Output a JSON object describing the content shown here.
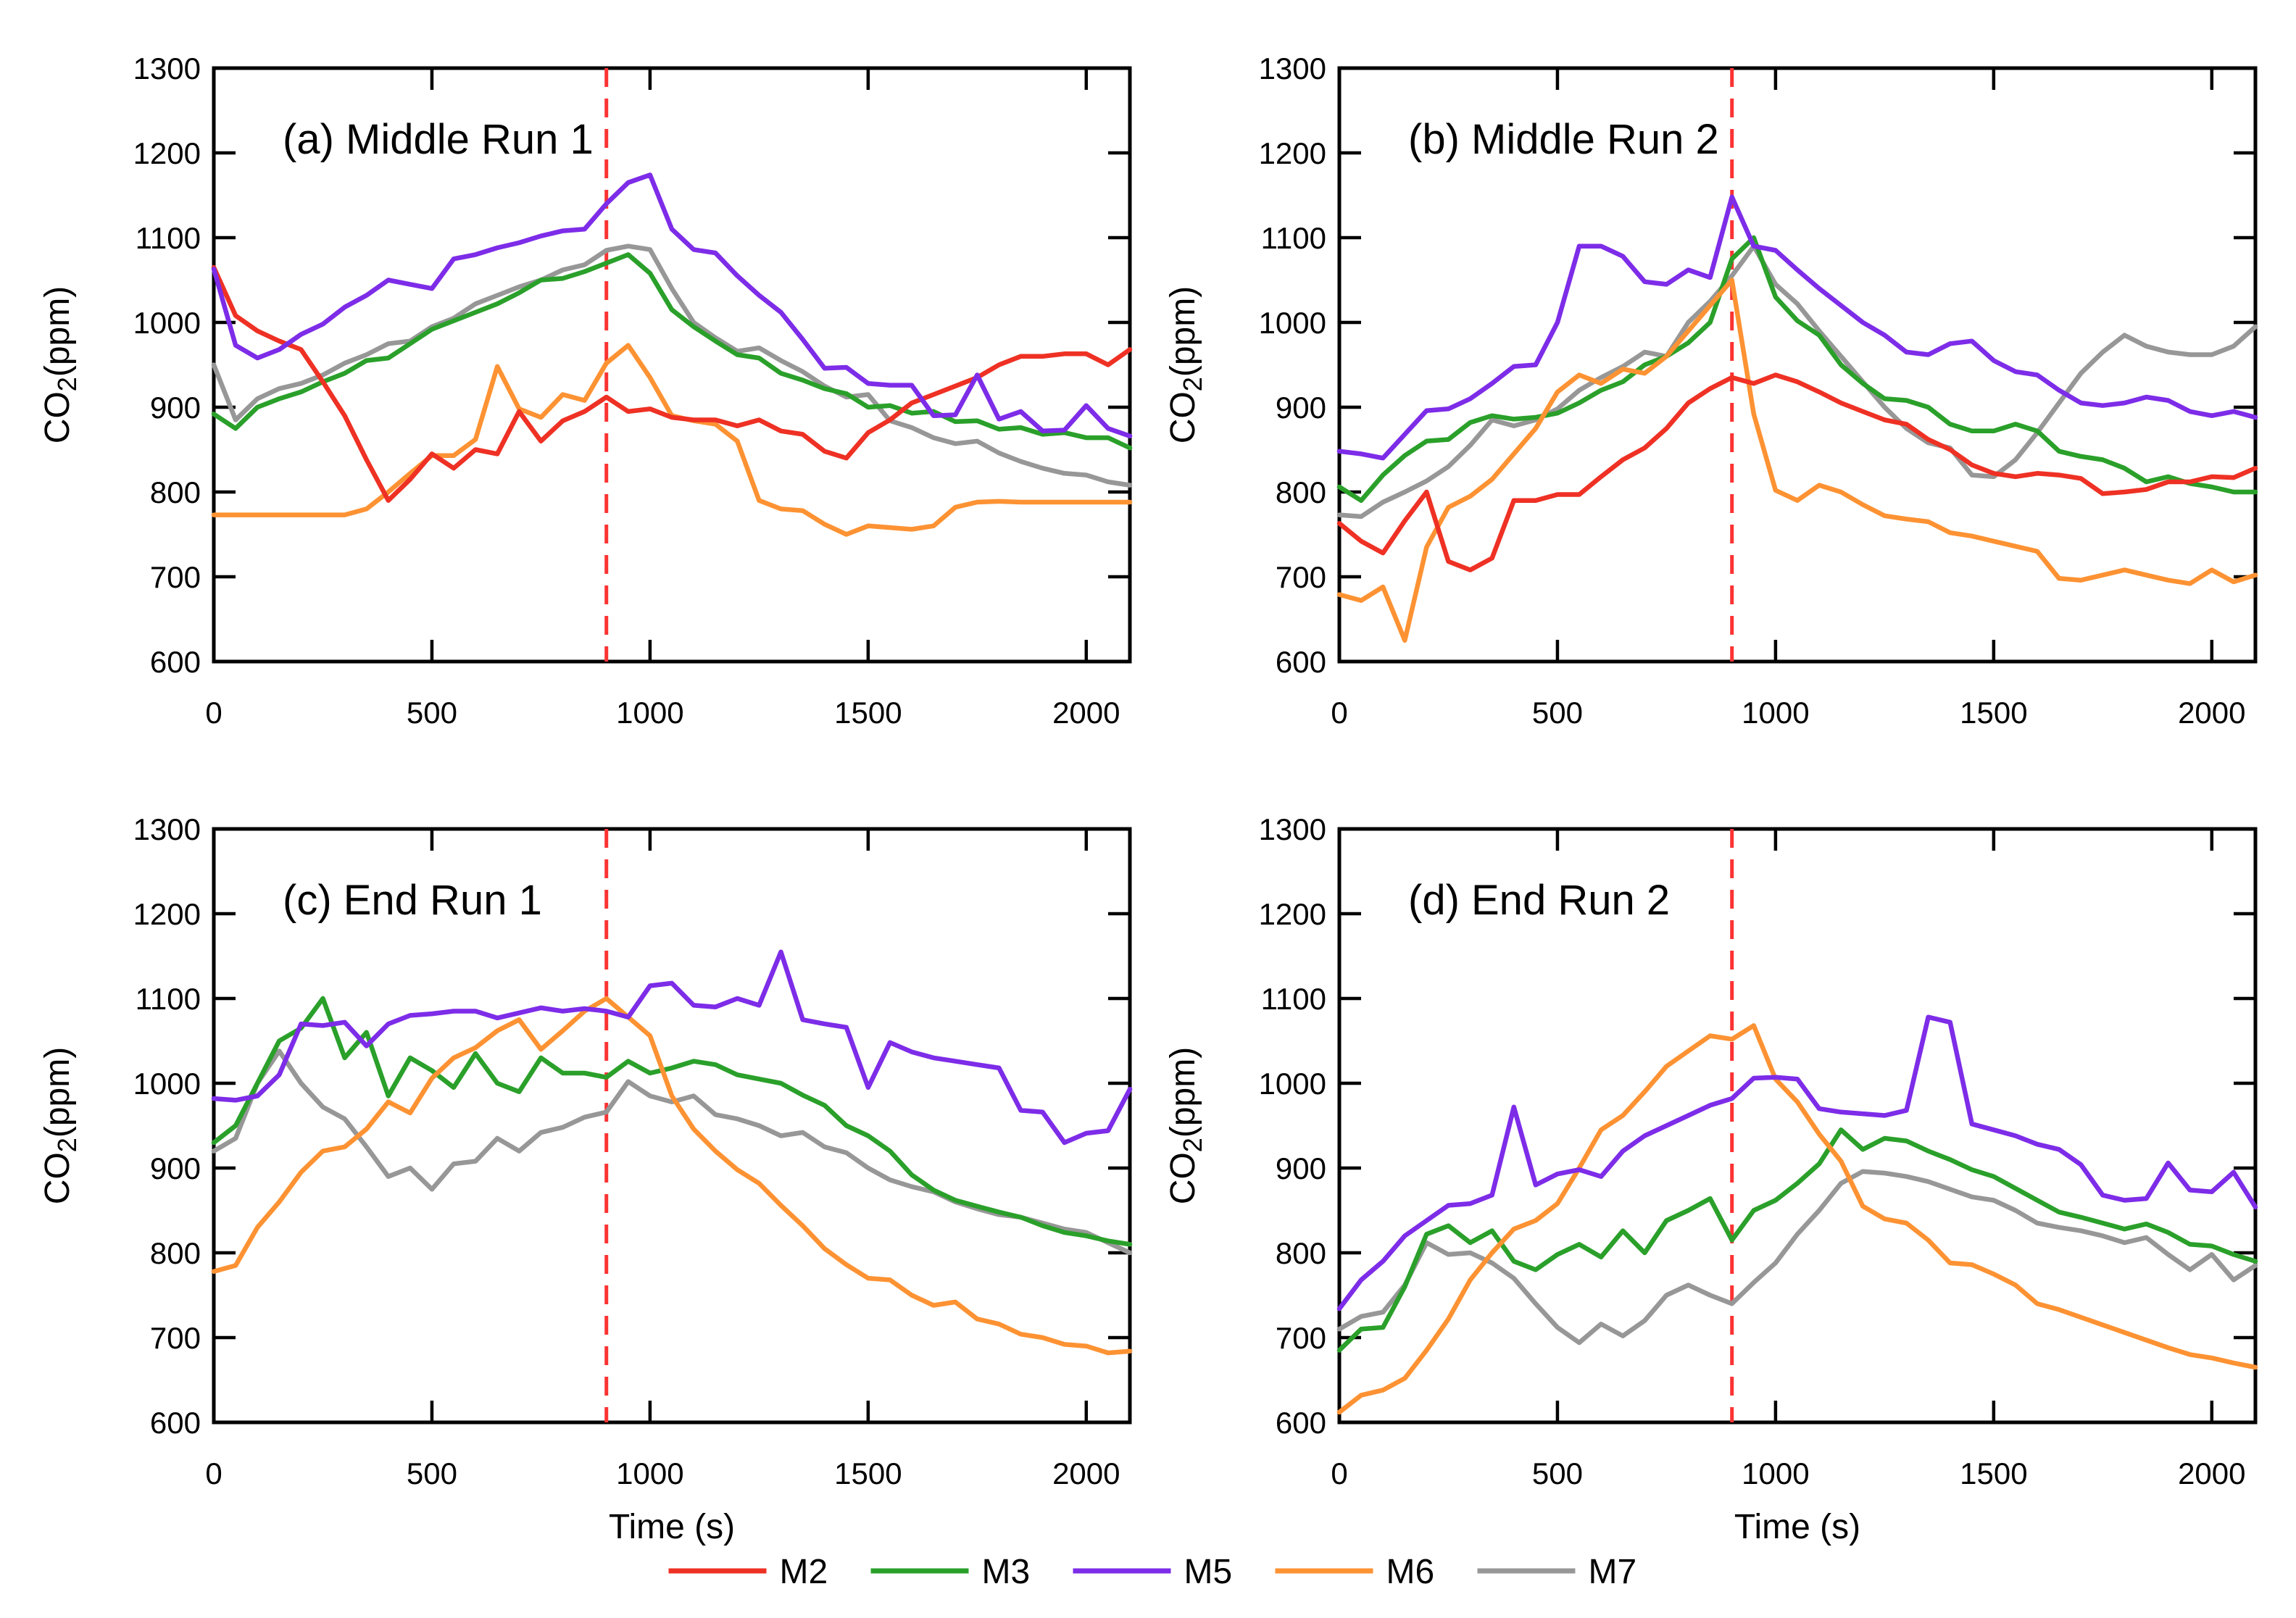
{
  "figure": {
    "background": "#ffffff"
  },
  "colors": {
    "M2": "#ee3124",
    "M3": "#2aa02a",
    "M5": "#7d2ce8",
    "M6": "#fd9233",
    "M7": "#979797",
    "marker": "#fb3333",
    "axis": "#000000"
  },
  "legend": {
    "entries": [
      {
        "label": "M2"
      },
      {
        "label": "M3"
      },
      {
        "label": "M5"
      },
      {
        "label": "M6"
      },
      {
        "label": "M7"
      }
    ]
  },
  "axes_text": {
    "ylabel_pre": "CO",
    "ylabel_sub": "2",
    "ylabel_post": "(ppm)",
    "xlabel": "Time (s)"
  },
  "chart_data": [
    {
      "type": "line",
      "id": "a",
      "title": "(a) Middle Run 1",
      "xlabel": null,
      "xlim": [
        0,
        2100
      ],
      "ylim": [
        600,
        1300
      ],
      "xticks": [
        0,
        500,
        1000,
        1500,
        2000
      ],
      "yticks": [
        600,
        700,
        800,
        900,
        1000,
        1100,
        1200,
        1300
      ],
      "marker_x": 900,
      "x_start": 0,
      "x_step": 50,
      "series": [
        {
          "name": "M2",
          "values": [
            1065,
            1008,
            990,
            978,
            968,
            930,
            890,
            838,
            790,
            815,
            845,
            828,
            850,
            845,
            895,
            860,
            884,
            895,
            912,
            895,
            898,
            888,
            885,
            885,
            878,
            885,
            872,
            868,
            848,
            840,
            870,
            885,
            905,
            915,
            925,
            935,
            950,
            960,
            960,
            963,
            963,
            950,
            968
          ]
        },
        {
          "name": "M3",
          "values": [
            892,
            875,
            900,
            910,
            918,
            930,
            940,
            955,
            958,
            975,
            992,
            1002,
            1012,
            1022,
            1035,
            1050,
            1052,
            1060,
            1070,
            1080,
            1058,
            1015,
            995,
            978,
            962,
            958,
            940,
            932,
            922,
            916,
            900,
            902,
            893,
            895,
            883,
            884,
            874,
            876,
            868,
            870,
            864,
            864,
            852
          ]
        },
        {
          "name": "M5",
          "values": [
            1063,
            973,
            958,
            968,
            986,
            998,
            1018,
            1032,
            1050,
            1045,
            1040,
            1075,
            1080,
            1088,
            1094,
            1102,
            1108,
            1110,
            1140,
            1165,
            1174,
            1110,
            1086,
            1082,
            1055,
            1032,
            1012,
            980,
            946,
            947,
            928,
            926,
            926,
            890,
            891,
            938,
            886,
            895,
            872,
            873,
            902,
            875,
            866
          ]
        },
        {
          "name": "M6",
          "values": [
            773,
            773,
            773,
            773,
            773,
            773,
            773,
            780,
            800,
            822,
            843,
            843,
            862,
            948,
            898,
            888,
            915,
            908,
            952,
            973,
            935,
            890,
            884,
            880,
            860,
            790,
            780,
            778,
            762,
            750,
            760,
            758,
            756,
            760,
            782,
            788,
            789,
            788,
            788,
            788,
            788,
            788,
            788
          ]
        },
        {
          "name": "M7",
          "values": [
            950,
            885,
            910,
            922,
            928,
            938,
            952,
            962,
            975,
            978,
            995,
            1005,
            1022,
            1032,
            1042,
            1050,
            1062,
            1068,
            1085,
            1090,
            1086,
            1040,
            1000,
            982,
            966,
            970,
            955,
            942,
            925,
            912,
            915,
            884,
            876,
            864,
            857,
            860,
            846,
            836,
            828,
            822,
            820,
            812,
            808
          ]
        }
      ]
    },
    {
      "type": "line",
      "id": "b",
      "title": "(b) Middle Run 2",
      "xlabel": null,
      "xlim": [
        0,
        2100
      ],
      "ylim": [
        600,
        1300
      ],
      "xticks": [
        0,
        500,
        1000,
        1500,
        2000
      ],
      "yticks": [
        600,
        700,
        800,
        900,
        1000,
        1100,
        1200,
        1300
      ],
      "marker_x": 900,
      "x_start": 0,
      "x_step": 50,
      "series": [
        {
          "name": "M2",
          "values": [
            763,
            742,
            728,
            766,
            800,
            718,
            708,
            722,
            790,
            790,
            797,
            797,
            818,
            838,
            852,
            875,
            905,
            922,
            935,
            928,
            938,
            930,
            918,
            905,
            895,
            885,
            880,
            862,
            850,
            832,
            822,
            818,
            822,
            820,
            816,
            798,
            800,
            803,
            812,
            812,
            818,
            817,
            828
          ]
        },
        {
          "name": "M3",
          "values": [
            806,
            790,
            820,
            843,
            860,
            862,
            882,
            890,
            886,
            888,
            893,
            905,
            920,
            930,
            950,
            960,
            976,
            1000,
            1075,
            1100,
            1030,
            1002,
            985,
            950,
            928,
            910,
            908,
            900,
            880,
            872,
            872,
            880,
            872,
            848,
            842,
            838,
            828,
            812,
            818,
            810,
            806,
            800,
            800
          ]
        },
        {
          "name": "M5",
          "values": [
            848,
            845,
            840,
            868,
            896,
            898,
            910,
            928,
            948,
            950,
            1000,
            1090,
            1090,
            1078,
            1048,
            1045,
            1062,
            1053,
            1148,
            1090,
            1085,
            1062,
            1040,
            1020,
            1000,
            985,
            965,
            962,
            975,
            978,
            955,
            942,
            938,
            920,
            905,
            902,
            905,
            912,
            908,
            895,
            890,
            895,
            888
          ]
        },
        {
          "name": "M6",
          "values": [
            679,
            672,
            688,
            625,
            735,
            782,
            795,
            815,
            845,
            875,
            918,
            938,
            928,
            945,
            940,
            960,
            990,
            1020,
            1050,
            892,
            802,
            790,
            808,
            800,
            785,
            772,
            768,
            765,
            752,
            748,
            742,
            736,
            730,
            698,
            696,
            702,
            708,
            702,
            696,
            692,
            708,
            694,
            702
          ]
        },
        {
          "name": "M7",
          "values": [
            773,
            771,
            788,
            800,
            813,
            830,
            855,
            885,
            878,
            885,
            898,
            920,
            935,
            948,
            965,
            960,
            1000,
            1025,
            1055,
            1090,
            1045,
            1022,
            990,
            960,
            930,
            900,
            875,
            858,
            852,
            820,
            818,
            838,
            870,
            905,
            940,
            965,
            985,
            972,
            965,
            962,
            962,
            972,
            995
          ]
        }
      ]
    },
    {
      "type": "line",
      "id": "c",
      "title": "(c) End Run 1",
      "xlabel": "Time (s)",
      "xlim": [
        0,
        2100
      ],
      "ylim": [
        600,
        1300
      ],
      "xticks": [
        0,
        500,
        1000,
        1500,
        2000
      ],
      "yticks": [
        600,
        700,
        800,
        900,
        1000,
        1100,
        1200,
        1300
      ],
      "marker_x": 900,
      "x_start": 0,
      "x_step": 50,
      "series": [
        {
          "name": "M3",
          "values": [
            930,
            950,
            1000,
            1050,
            1065,
            1100,
            1030,
            1060,
            985,
            1030,
            1015,
            995,
            1035,
            1000,
            990,
            1030,
            1012,
            1012,
            1007,
            1026,
            1012,
            1018,
            1026,
            1022,
            1010,
            1005,
            1000,
            986,
            974,
            950,
            938,
            920,
            892,
            874,
            862,
            855,
            848,
            842,
            832,
            824,
            820,
            814,
            810
          ]
        },
        {
          "name": "M5",
          "values": [
            982,
            980,
            985,
            1010,
            1070,
            1068,
            1072,
            1044,
            1070,
            1080,
            1082,
            1085,
            1085,
            1077,
            1083,
            1089,
            1085,
            1088,
            1085,
            1078,
            1115,
            1118,
            1092,
            1090,
            1100,
            1092,
            1155,
            1075,
            1070,
            1066,
            995,
            1048,
            1037,
            1030,
            1026,
            1022,
            1018,
            968,
            966,
            930,
            941,
            944,
            993
          ]
        },
        {
          "name": "M6",
          "values": [
            778,
            785,
            830,
            860,
            895,
            920,
            925,
            946,
            978,
            965,
            1006,
            1030,
            1042,
            1062,
            1075,
            1040,
            1062,
            1085,
            1100,
            1078,
            1056,
            985,
            946,
            920,
            898,
            882,
            856,
            832,
            805,
            786,
            770,
            768,
            750,
            738,
            742,
            722,
            716,
            704,
            700,
            692,
            690,
            682,
            684
          ]
        },
        {
          "name": "M7",
          "values": [
            920,
            935,
            1000,
            1038,
            1000,
            972,
            958,
            925,
            890,
            900,
            875,
            905,
            908,
            935,
            920,
            942,
            948,
            960,
            966,
            1002,
            985,
            978,
            985,
            963,
            958,
            950,
            938,
            942,
            925,
            918,
            900,
            886,
            878,
            872,
            860,
            852,
            845,
            842,
            835,
            828,
            824,
            812,
            800
          ]
        }
      ]
    },
    {
      "type": "line",
      "id": "d",
      "title": "(d) End Run 2",
      "xlabel": "Time (s)",
      "xlim": [
        0,
        2100
      ],
      "ylim": [
        600,
        1300
      ],
      "xticks": [
        0,
        500,
        1000,
        1500,
        2000
      ],
      "yticks": [
        600,
        700,
        800,
        900,
        1000,
        1100,
        1200,
        1300
      ],
      "marker_x": 900,
      "x_start": 0,
      "x_step": 50,
      "series": [
        {
          "name": "M3",
          "values": [
            685,
            710,
            712,
            760,
            822,
            832,
            812,
            826,
            790,
            780,
            798,
            810,
            795,
            826,
            800,
            838,
            850,
            864,
            815,
            850,
            862,
            882,
            905,
            945,
            922,
            935,
            932,
            920,
            910,
            898,
            890,
            876,
            862,
            848,
            842,
            835,
            828,
            834,
            824,
            810,
            808,
            798,
            790
          ]
        },
        {
          "name": "M5",
          "values": [
            734,
            768,
            790,
            820,
            838,
            856,
            858,
            868,
            972,
            880,
            893,
            898,
            890,
            920,
            938,
            950,
            962,
            974,
            982,
            1006,
            1007,
            1005,
            970,
            966,
            964,
            962,
            968,
            1078,
            1072,
            952,
            945,
            938,
            928,
            922,
            904,
            868,
            862,
            864,
            906,
            874,
            872,
            895,
            854
          ]
        },
        {
          "name": "M6",
          "values": [
            612,
            632,
            638,
            652,
            685,
            722,
            768,
            800,
            828,
            838,
            858,
            900,
            945,
            962,
            990,
            1020,
            1038,
            1056,
            1052,
            1068,
            1005,
            978,
            940,
            908,
            855,
            840,
            835,
            815,
            788,
            786,
            775,
            762,
            740,
            733,
            724,
            715,
            706,
            697,
            688,
            680,
            676,
            670,
            665
          ]
        },
        {
          "name": "M7",
          "values": [
            710,
            725,
            730,
            762,
            812,
            798,
            800,
            788,
            770,
            740,
            712,
            694,
            716,
            702,
            720,
            750,
            762,
            750,
            740,
            765,
            788,
            822,
            850,
            882,
            896,
            894,
            890,
            884,
            875,
            866,
            862,
            850,
            835,
            830,
            826,
            820,
            812,
            818,
            798,
            780,
            798,
            768,
            785
          ]
        }
      ]
    }
  ]
}
